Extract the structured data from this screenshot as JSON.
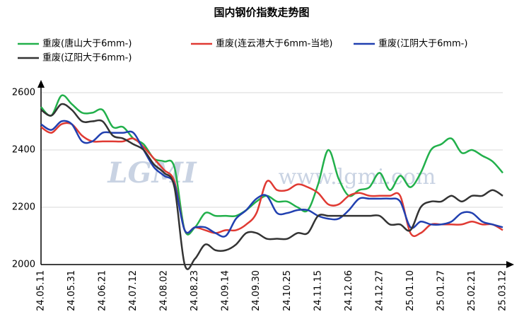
{
  "chart_data": {
    "type": "line",
    "title": "国内钢价指数走势图",
    "watermark_logo": "LGMI",
    "watermark": "www.lgmi.com",
    "categories": [
      "24.05.11",
      null,
      null,
      "24.05.31",
      null,
      null,
      "24.06.21",
      null,
      null,
      "24.07.12",
      null,
      null,
      "24.08.02",
      null,
      null,
      "24.08.23",
      null,
      null,
      "24.09.14",
      null,
      null,
      "24.09.30",
      null,
      null,
      "24.10.25",
      null,
      null,
      "24.11.15",
      null,
      null,
      "24.12.06",
      null,
      null,
      "24.12.27",
      null,
      null,
      "25.01.10",
      null,
      null,
      "25.01.27",
      null,
      null,
      "25.02.21",
      null,
      null,
      "25.03.12"
    ],
    "series": [
      {
        "name": "重废(唐山大于6mm-)",
        "color": "#22b04b",
        "values": [
          2550,
          2520,
          2590,
          2560,
          2530,
          2530,
          2540,
          2480,
          2480,
          2440,
          2420,
          2370,
          2360,
          2340,
          2120,
          2130,
          2180,
          2170,
          2170,
          2170,
          2190,
          2220,
          2240,
          2220,
          2220,
          2200,
          2190,
          2280,
          2400,
          2300,
          2240,
          2260,
          2270,
          2320,
          2260,
          2310,
          2270,
          2320,
          2400,
          2420,
          2440,
          2390,
          2400,
          2380,
          2360,
          2320
        ]
      },
      {
        "name": "重废(连云港大于6mm-当地)",
        "color": "#e03a33",
        "values": [
          2480,
          2460,
          2490,
          2490,
          2450,
          2430,
          2430,
          2430,
          2430,
          2440,
          2410,
          2370,
          2330,
          2290,
          2120,
          2130,
          2120,
          2110,
          2120,
          2120,
          2140,
          2180,
          2290,
          2260,
          2260,
          2280,
          2270,
          2250,
          2210,
          2210,
          2240,
          2250,
          2240,
          2240,
          2240,
          2240,
          2110,
          2110,
          2140,
          2140,
          2140,
          2140,
          2150,
          2140,
          2140,
          2120
        ]
      },
      {
        "name": "重废(江阴大于6mm-)",
        "color": "#2140b0",
        "values": [
          2490,
          2470,
          2500,
          2490,
          2430,
          2430,
          2460,
          2460,
          2460,
          2460,
          2400,
          2340,
          2310,
          2280,
          2120,
          2130,
          2130,
          2110,
          2100,
          2160,
          2190,
          2230,
          2240,
          2180,
          2180,
          2190,
          2190,
          2170,
          2160,
          2160,
          2190,
          2230,
          2230,
          2230,
          2230,
          2220,
          2130,
          2150,
          2140,
          2140,
          2150,
          2180,
          2180,
          2150,
          2140,
          2130
        ]
      },
      {
        "name": "重废(辽阳大于6mm-)",
        "color": "#333333",
        "values": [
          2540,
          2520,
          2560,
          2540,
          2500,
          2500,
          2500,
          2450,
          2440,
          2420,
          2400,
          2350,
          2320,
          2270,
          2000,
          2020,
          2070,
          2050,
          2050,
          2070,
          2110,
          2110,
          2090,
          2090,
          2090,
          2110,
          2110,
          2170,
          2170,
          2170,
          2170,
          2170,
          2170,
          2170,
          2140,
          2140,
          2120,
          2200,
          2220,
          2220,
          2240,
          2220,
          2240,
          2240,
          2260,
          2240
        ]
      }
    ],
    "ylim": [
      2000,
      2600
    ],
    "yticks": [
      2000,
      2200,
      2400,
      2600
    ],
    "grid": true
  }
}
